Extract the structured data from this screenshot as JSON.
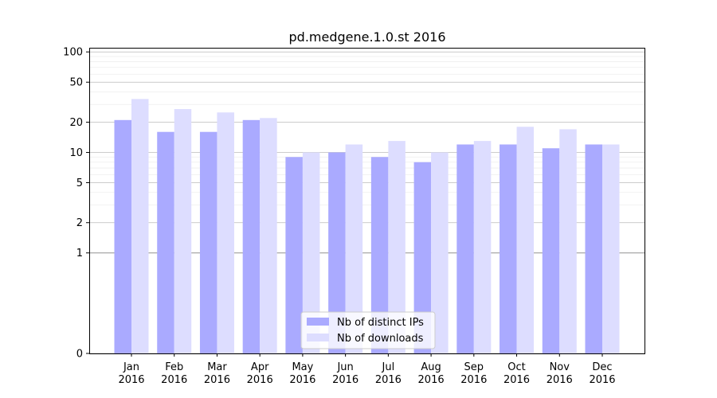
{
  "chart_data": {
    "type": "bar",
    "title": "pd.medgene.1.0.st 2016",
    "xlabel": "",
    "ylabel": "",
    "yscale": "symlog",
    "ylim": [
      0,
      110
    ],
    "yticks": [
      0,
      1,
      2,
      5,
      10,
      20,
      50,
      100
    ],
    "grid": true,
    "legend_position": "bottom-center",
    "categories": [
      "Jan\n2016",
      "Feb\n2016",
      "Mar\n2016",
      "Apr\n2016",
      "May\n2016",
      "Jun\n2016",
      "Jul\n2016",
      "Aug\n2016",
      "Sep\n2016",
      "Oct\n2016",
      "Nov\n2016",
      "Dec\n2016"
    ],
    "series": [
      {
        "name": "Nb of distinct IPs",
        "color": "#aaaaff",
        "values": [
          21,
          16,
          16,
          21,
          9,
          10,
          9,
          8,
          12,
          12,
          11,
          12
        ]
      },
      {
        "name": "Nb of downloads",
        "color": "#ddddff",
        "values": [
          34,
          27,
          25,
          22,
          10,
          12,
          13,
          10,
          13,
          18,
          17,
          12
        ]
      }
    ]
  }
}
